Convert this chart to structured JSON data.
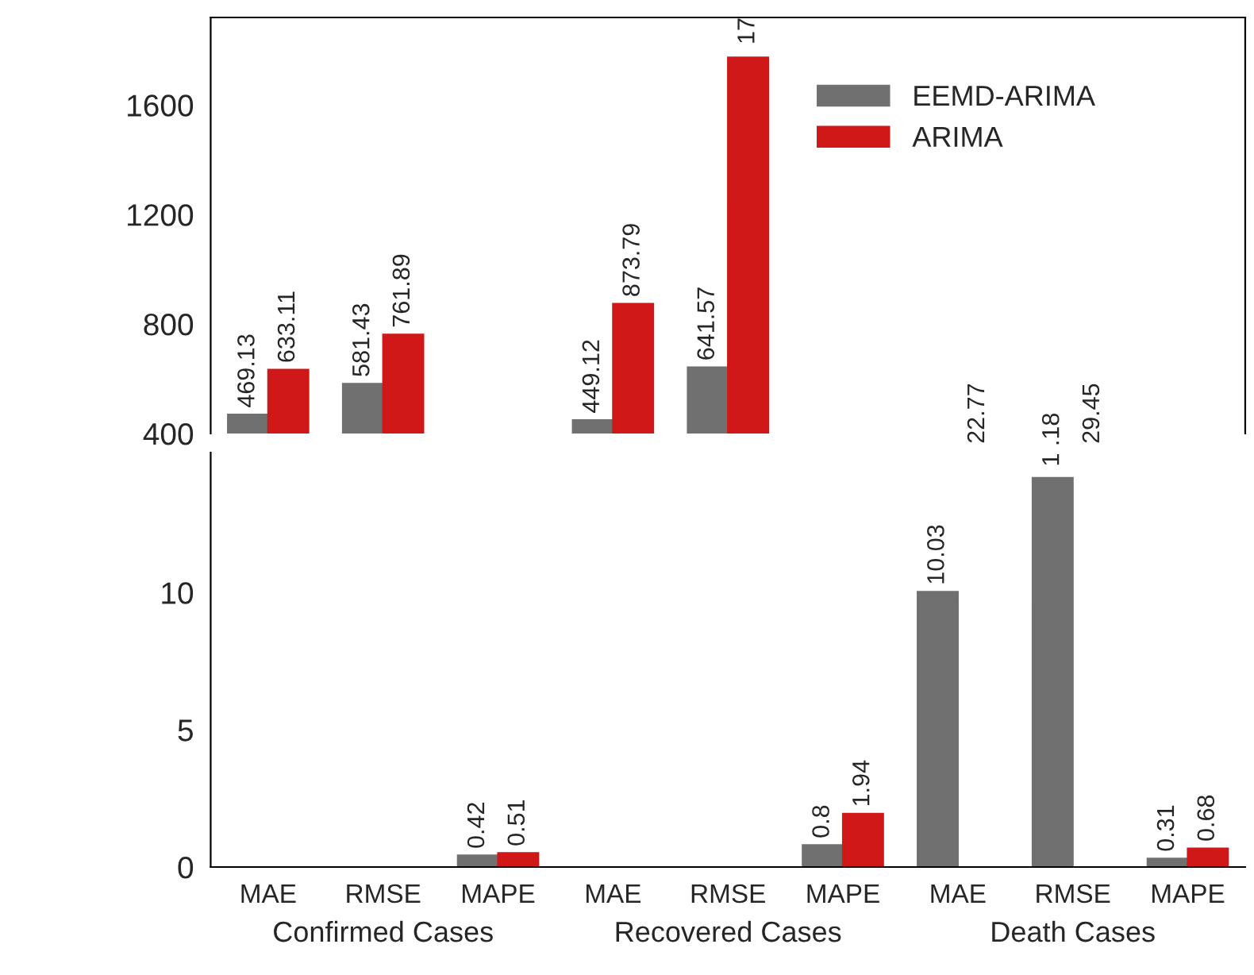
{
  "chart_data": [
    {
      "type": "bar",
      "categories": [
        null,
        null,
        null,
        null,
        null,
        null,
        null,
        null,
        null
      ],
      "ylim": [
        400,
        1920
      ],
      "yticks": [
        400,
        800,
        1200,
        1600
      ],
      "tick_labels": "y",
      "legend": "top right",
      "series": [
        {
          "name": "EEMD-ARIMA",
          "color": "#707070",
          "values": [
            469.13,
            581.43,
            null,
            449.12,
            641.57,
            null,
            null,
            null,
            null
          ],
          "value_labels": [
            "469.13",
            "581.43",
            null,
            "449.12",
            "641.57",
            null,
            null,
            null,
            null
          ]
        },
        {
          "name": "ARIMA",
          "color": "#d01818",
          "values": [
            633.11,
            761.89,
            null,
            873.79,
            1774,
            null,
            null,
            null,
            null
          ],
          "value_labels": [
            "633.11",
            "761.89",
            null,
            "873.79",
            null,
            null,
            null,
            null,
            null
          ]
        }
      ],
      "annotations": [
        "17"
      ]
    },
    {
      "type": "bar",
      "categories": [
        "MAE",
        "RMSE",
        "MAPE",
        "MAE",
        "RMSE",
        "MAPE",
        "MAE",
        "RMSE",
        "MAPE"
      ],
      "ylim": [
        0,
        15.1
      ],
      "yticks": [
        0,
        5,
        10
      ],
      "annotations": [
        "22.77",
        "29.45",
        "1 .18",
        "Confirmed Cases",
        "Recovered Cases",
        "Death Cases"
      ],
      "series": [
        {
          "color": "#707070",
          "values": [
            null,
            null,
            0.42,
            null,
            null,
            0.8,
            10.03,
            14.18,
            0.31
          ],
          "value_labels": [
            null,
            null,
            "0.42",
            null,
            null,
            "0.8",
            "10.03",
            null,
            "0.31"
          ]
        },
        {
          "color": "#d01818",
          "values": [
            null,
            null,
            0.51,
            null,
            null,
            1.94,
            null,
            null,
            0.68
          ],
          "value_labels": [
            null,
            null,
            "0.51",
            null,
            null,
            "1.94",
            null,
            null,
            "0.68"
          ]
        }
      ]
    }
  ]
}
